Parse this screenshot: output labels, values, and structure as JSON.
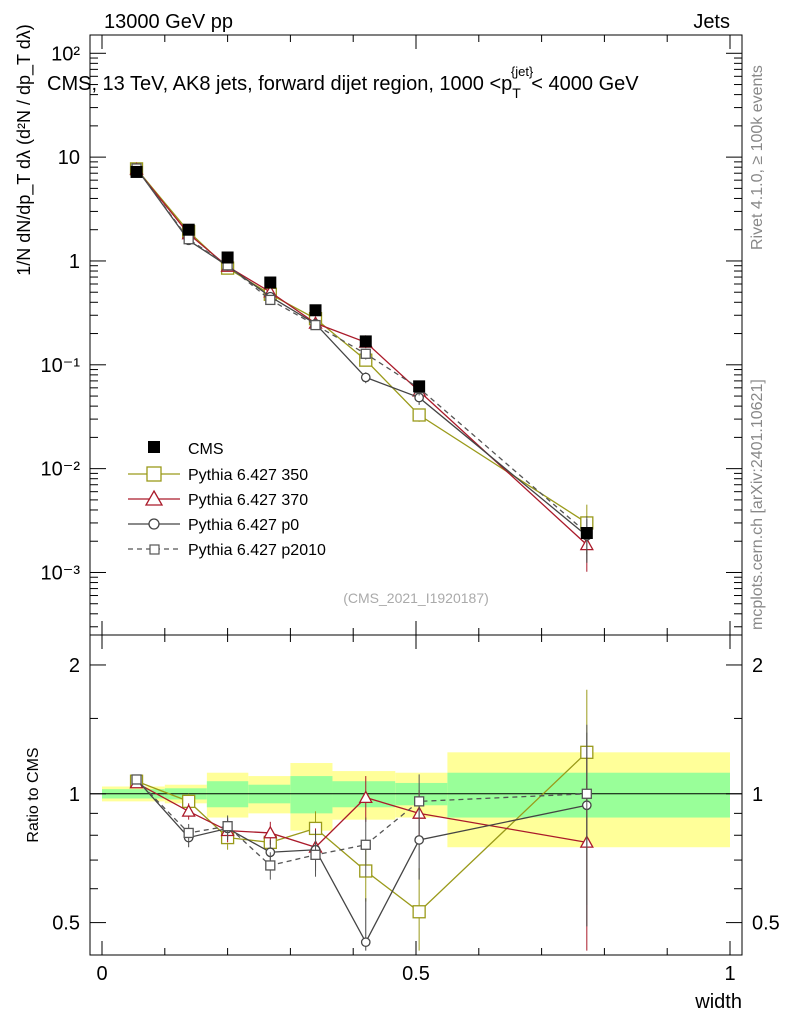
{
  "chart_data": {
    "type": "line",
    "header_left": "13000 GeV pp",
    "header_right": "Jets",
    "title": "CMS, 13 TeV, AK8 jets, forward dijet region, 1000 <p",
    "title_sup": "{jet}",
    "title_sub": "T",
    "title_end": "< 4000 GeV",
    "ylabel_upper": "1/N dN/dp_T dλ (d²N / dp_T dλ)",
    "ylabel_lower": "Ratio to CMS",
    "xlabel": "width",
    "watermark": "(CMS_2021_I1920187)",
    "side_label_1": "Rivet 4.1.0, ≥ 100k events",
    "side_label_2": "mcplots.cern.ch [arXiv:2401.10621]",
    "x_ticks": [
      "0",
      "0.5",
      "1"
    ],
    "y_ticks_upper": [
      "10⁻³",
      "10⁻²",
      "10⁻¹",
      "1",
      "10",
      "10²"
    ],
    "y_ticks_lower": [
      "0.5",
      "1",
      "2"
    ],
    "xlim": [
      0,
      1
    ],
    "ylim_upper": [
      0.00025,
      150
    ],
    "ylim_lower": [
      0.42,
      2.35
    ],
    "x_bins": [
      0.0,
      0.1,
      0.167,
      0.233,
      0.3,
      0.367,
      0.467,
      0.55,
      1.0
    ],
    "x": [
      0.055,
      0.138,
      0.2,
      0.268,
      0.34,
      0.42,
      0.505,
      0.772
    ],
    "cms": [
      7.2,
      2.0,
      1.08,
      0.62,
      0.335,
      0.168,
      0.062,
      0.0024
    ],
    "cms_band_inner": [
      0.025,
      0.03,
      0.07,
      0.05,
      0.1,
      0.07,
      0.06,
      0.12
    ],
    "cms_band_outer": [
      0.04,
      0.05,
      0.12,
      0.1,
      0.18,
      0.13,
      0.12,
      0.25
    ],
    "legend_title": "CMS",
    "series": [
      {
        "name": "Pythia 6.427 350",
        "color": "#9a9a1a",
        "marker": "square",
        "dashed": false,
        "ratio": [
          1.07,
          0.96,
          0.79,
          0.77,
          0.83,
          0.66,
          0.53,
          1.25
        ],
        "ratio_err": [
          0.02,
          0.04,
          0.05,
          0.05,
          0.08,
          0.1,
          0.14,
          0.5
        ]
      },
      {
        "name": "Pythia 6.427 370",
        "color": "#aa1a2a",
        "marker": "triangle",
        "dashed": false,
        "ratio": [
          1.06,
          0.91,
          0.82,
          0.81,
          0.75,
          0.98,
          0.9,
          0.77
        ],
        "ratio_err": [
          0.02,
          0.04,
          0.05,
          0.05,
          0.08,
          0.12,
          0.12,
          0.45
        ]
      },
      {
        "name": "Pythia 6.427 p0",
        "color": "#444444",
        "marker": "circle",
        "dashed": false,
        "ratio": [
          1.08,
          0.79,
          0.83,
          0.73,
          0.74,
          0.45,
          0.78,
          0.94
        ],
        "ratio_err": [
          0.02,
          0.04,
          0.05,
          0.05,
          0.08,
          0.12,
          0.15,
          0.45
        ]
      },
      {
        "name": "Pythia 6.427 p2010",
        "color": "#555555",
        "marker": "square",
        "dashed": true,
        "ratio": [
          1.08,
          0.81,
          0.84,
          0.68,
          0.72,
          0.76,
          0.96,
          1.0
        ],
        "ratio_err": [
          0.02,
          0.04,
          0.05,
          0.05,
          0.08,
          0.12,
          0.15,
          0.45
        ]
      }
    ]
  }
}
